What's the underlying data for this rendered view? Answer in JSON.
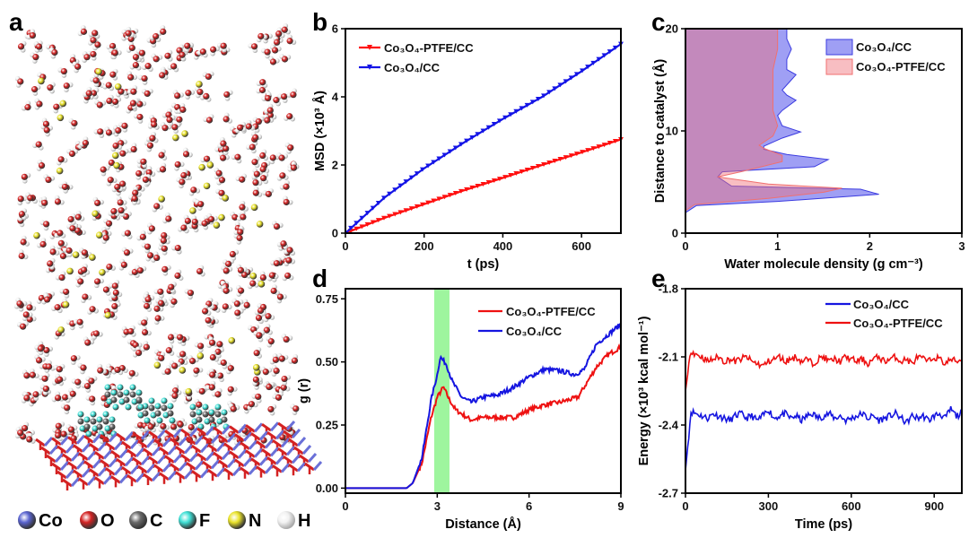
{
  "panel_labels": {
    "a": "a",
    "b": "b",
    "c": "c",
    "d": "d",
    "e": "e"
  },
  "structure_legend": {
    "items": [
      {
        "label": "Co",
        "color": "#3d5bbf"
      },
      {
        "label": "O",
        "color": "#d42222"
      },
      {
        "label": "C",
        "color": "#5a5a5a"
      },
      {
        "label": "F",
        "color": "#3fe0d6"
      },
      {
        "label": "N",
        "color": "#e9e22a"
      },
      {
        "label": "H",
        "color": "#e8e8e8"
      }
    ]
  },
  "chart_data": [
    {
      "id": "b",
      "type": "line",
      "xlabel": "t (ps)",
      "ylabel": "MSD (×10³ Å)",
      "xlim": [
        0,
        700
      ],
      "ylim": [
        0,
        6
      ],
      "xticks": [
        0,
        200,
        400,
        600
      ],
      "yticks": [
        0,
        2,
        4,
        6
      ],
      "legend_position": "top-left",
      "series": [
        {
          "name": "Co₃O₄-PTFE/CC",
          "color": "#ff1010",
          "marker": "down-triangle",
          "x": [
            0,
            100,
            200,
            300,
            400,
            500,
            600,
            700
          ],
          "y": [
            0,
            0.45,
            0.85,
            1.25,
            1.62,
            2.0,
            2.37,
            2.75
          ]
        },
        {
          "name": "Co₃O₄/CC",
          "color": "#1414e6",
          "marker": "down-triangle",
          "x": [
            0,
            100,
            200,
            300,
            400,
            500,
            600,
            700
          ],
          "y": [
            0,
            1.05,
            1.9,
            2.65,
            3.35,
            4.0,
            4.75,
            5.55
          ]
        }
      ]
    },
    {
      "id": "c",
      "type": "area",
      "xlabel": "Water molecule density (g cm⁻³)",
      "ylabel": "Distance to catalyst (Å)",
      "xlim": [
        0,
        3
      ],
      "ylim": [
        0,
        20
      ],
      "xticks": [
        0,
        1,
        2,
        3
      ],
      "yticks": [
        0,
        10,
        20
      ],
      "legend_position": "top-right",
      "series": [
        {
          "name": "Co₃O₄/CC",
          "color": "#3b3be0",
          "fill": "rgba(80,80,235,0.55)",
          "distance": [
            2.0,
            2.7,
            3.1,
            3.8,
            4.3,
            4.6,
            5.5,
            6.0,
            6.5,
            7.2,
            7.7,
            8.2,
            8.5,
            9.3,
            9.9,
            10.5,
            11.5,
            12.0,
            13.0,
            13.5,
            14.0,
            15.0,
            15.5,
            16.0,
            17.0,
            18.0,
            19.0,
            20.0
          ],
          "density": [
            0,
            0.12,
            1.0,
            2.1,
            1.9,
            0.5,
            0.35,
            0.4,
            1.4,
            1.55,
            1.1,
            0.85,
            0.85,
            1.05,
            1.25,
            1.05,
            1.0,
            1.05,
            1.2,
            1.1,
            1.05,
            1.15,
            1.2,
            1.1,
            1.1,
            1.15,
            1.1,
            1.1
          ]
        },
        {
          "name": "Co₃O₄-PTFE/CC",
          "color": "#f07070",
          "fill": "rgba(240,110,120,0.45)",
          "distance": [
            2.2,
            2.8,
            3.4,
            4.0,
            4.4,
            4.8,
            5.5,
            6.0,
            7.0,
            7.6,
            8.3,
            8.6,
            9.5,
            10.5,
            12.0,
            14.0,
            16.0,
            18.0,
            20.0
          ],
          "density": [
            0,
            0.1,
            0.9,
            1.5,
            1.7,
            0.9,
            0.35,
            0.6,
            1.05,
            1.05,
            0.85,
            0.8,
            0.95,
            1.0,
            0.95,
            0.95,
            0.95,
            1.0,
            1.0
          ]
        }
      ]
    },
    {
      "id": "d",
      "type": "line",
      "xlabel": "Distance (Å)",
      "ylabel": "g (r)",
      "xlim": [
        0,
        9
      ],
      "ylim": [
        -0.02,
        0.79
      ],
      "xticks": [
        0,
        3,
        6,
        9
      ],
      "yticks": [
        0.0,
        0.25,
        0.5,
        0.75
      ],
      "ytick_labels": [
        "0.00",
        "0.25",
        "0.50",
        "0.75"
      ],
      "highlight_band": {
        "x": [
          2.9,
          3.4
        ],
        "color": "#9ef59e"
      },
      "legend_position": "top-right",
      "series": [
        {
          "name": "Co₃O₄-PTFE/CC",
          "color": "#ee1111",
          "x": [
            0,
            2.0,
            2.2,
            2.5,
            2.8,
            3.0,
            3.2,
            3.4,
            3.6,
            4.1,
            4.5,
            5.5,
            6.0,
            6.5,
            7.0,
            7.6,
            7.8,
            8.2,
            8.6,
            9.0
          ],
          "y": [
            0,
            0,
            0.02,
            0.1,
            0.28,
            0.36,
            0.4,
            0.35,
            0.31,
            0.27,
            0.28,
            0.28,
            0.31,
            0.33,
            0.34,
            0.36,
            0.4,
            0.48,
            0.53,
            0.56
          ]
        },
        {
          "name": "Co₃O₄/CC",
          "color": "#1515e0",
          "x": [
            0,
            2.0,
            2.2,
            2.5,
            2.8,
            3.0,
            3.1,
            3.3,
            3.5,
            3.8,
            4.1,
            4.5,
            5.0,
            5.5,
            6.0,
            6.5,
            7.0,
            7.5,
            7.8,
            8.2,
            8.6,
            9.0
          ],
          "y": [
            0,
            0,
            0.02,
            0.12,
            0.35,
            0.45,
            0.52,
            0.49,
            0.42,
            0.36,
            0.34,
            0.36,
            0.37,
            0.4,
            0.44,
            0.47,
            0.465,
            0.45,
            0.47,
            0.57,
            0.61,
            0.65
          ]
        }
      ]
    },
    {
      "id": "e",
      "type": "line",
      "xlabel": "Time (ps)",
      "ylabel": "Energy (×10³ kcal mol⁻¹)",
      "xlim": [
        0,
        1000
      ],
      "ylim": [
        -2.7,
        -1.8
      ],
      "xticks": [
        0,
        300,
        600,
        900
      ],
      "yticks": [
        -2.7,
        -2.4,
        -2.1,
        -1.8
      ],
      "ytick_labels": [
        "-2.7",
        "-2.4",
        "-2.1",
        "-1.8"
      ],
      "legend_position": "top-right",
      "x_step": 20,
      "series": [
        {
          "name": "Co₃O₄/CC",
          "color": "#1515e0",
          "y": [
            -2.6,
            -2.34,
            -2.35,
            -2.36,
            -2.37,
            -2.35,
            -2.36,
            -2.37,
            -2.38,
            -2.36,
            -2.35,
            -2.37,
            -2.36,
            -2.38,
            -2.36,
            -2.33,
            -2.37,
            -2.36,
            -2.35,
            -2.37,
            -2.36,
            -2.38,
            -2.36,
            -2.35,
            -2.37,
            -2.36,
            -2.35,
            -2.37,
            -2.36,
            -2.38,
            -2.37,
            -2.36,
            -2.35,
            -2.37,
            -2.36,
            -2.38,
            -2.37,
            -2.36,
            -2.35,
            -2.37,
            -2.39,
            -2.36,
            -2.37,
            -2.36,
            -2.38,
            -2.36,
            -2.35,
            -2.37,
            -2.33,
            -2.36,
            -2.35
          ]
        },
        {
          "name": "Co₃O₄-PTFE/CC",
          "color": "#ee1111",
          "y": [
            -2.25,
            -2.07,
            -2.09,
            -2.1,
            -2.12,
            -2.11,
            -2.1,
            -2.12,
            -2.11,
            -2.12,
            -2.11,
            -2.1,
            -2.12,
            -2.13,
            -2.14,
            -2.12,
            -2.11,
            -2.1,
            -2.12,
            -2.11,
            -2.1,
            -2.12,
            -2.11,
            -2.13,
            -2.11,
            -2.1,
            -2.12,
            -2.11,
            -2.12,
            -2.1,
            -2.11,
            -2.12,
            -2.11,
            -2.13,
            -2.11,
            -2.1,
            -2.12,
            -2.11,
            -2.1,
            -2.12,
            -2.11,
            -2.13,
            -2.1,
            -2.11,
            -2.12,
            -2.1,
            -2.11,
            -2.13,
            -2.11,
            -2.12,
            -2.11
          ]
        }
      ]
    }
  ]
}
